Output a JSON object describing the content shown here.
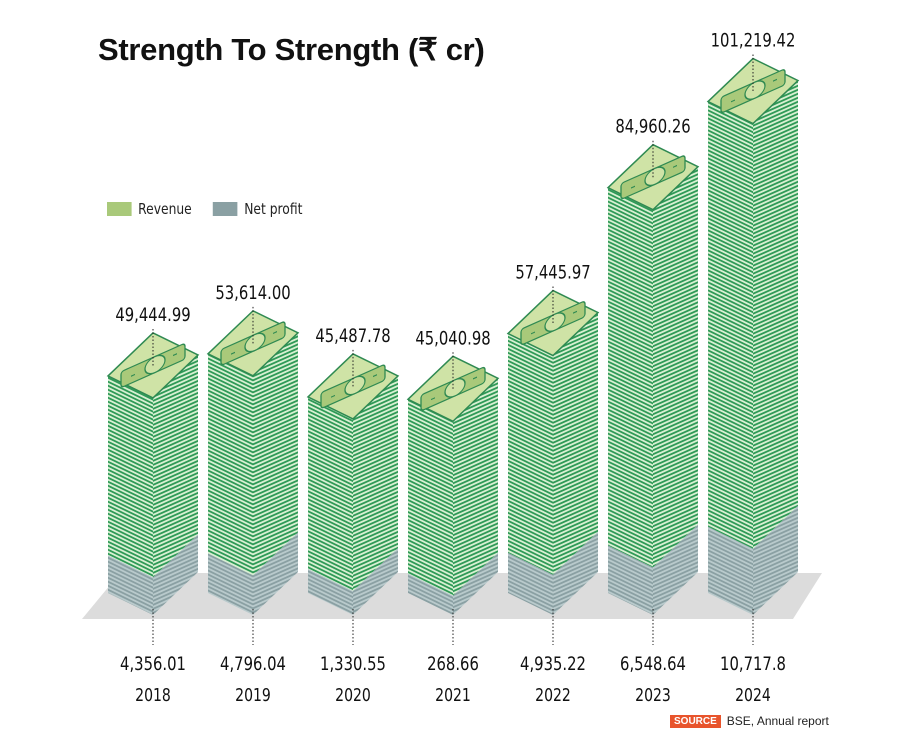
{
  "chart_data": {
    "type": "bar",
    "title": "Strength To Strength (₹ cr)",
    "xlabel": "",
    "ylabel": "",
    "categories": [
      "2018",
      "2019",
      "2020",
      "2021",
      "2022",
      "2023",
      "2024"
    ],
    "series": [
      {
        "name": "Revenue",
        "values": [
          49444.99,
          53614.0,
          45487.78,
          45040.98,
          57445.97,
          84960.26,
          101219.42
        ],
        "labels": [
          "49,444.99",
          "53,614.00",
          "45,487.78",
          "45,040.98",
          "57,445.97",
          "84,960.26",
          "101,219.42"
        ]
      },
      {
        "name": "Net profit",
        "values": [
          4356.01,
          4796.04,
          1330.55,
          268.66,
          4935.22,
          6548.64,
          10717.8
        ],
        "labels": [
          "4,356.01",
          "4,796.04",
          "1,330.55",
          "268.66",
          "4,935.22",
          "6,548.64",
          "10,717.8"
        ]
      }
    ],
    "legend_position": "top-left",
    "grid": false,
    "source": {
      "tag": "SOURCE",
      "text": "BSE, Annual report"
    }
  },
  "colors": {
    "revenue": "#a9c97a",
    "revenue_dark": "#2f9a57",
    "revenue_light": "#d8f0d2",
    "net_profit": "#8aa0a3",
    "net_profit_light": "#b9cacc",
    "floor": "#dcdcdc",
    "source_tag": "#e8542c"
  }
}
